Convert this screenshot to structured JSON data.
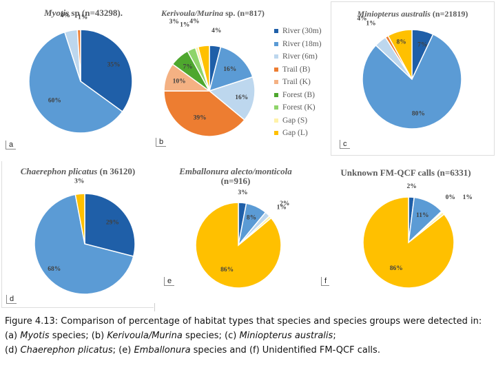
{
  "colors": {
    "river30": "#1f5fa8",
    "river18": "#5b9bd5",
    "river6": "#bdd7ee",
    "trailB": "#ed7d31",
    "trailK": "#f4b183",
    "forestB": "#4ea72e",
    "forestK": "#8fd46a",
    "gapS": "#fff2a8",
    "gapL": "#ffc000"
  },
  "legend": {
    "items": [
      {
        "label": "River (30m)",
        "color": "#1f5fa8"
      },
      {
        "label": "River (18m)",
        "color": "#5b9bd5"
      },
      {
        "label": "River (6m)",
        "color": "#bdd7ee"
      },
      {
        "label": "Trail (B)",
        "color": "#ed7d31"
      },
      {
        "label": "Trail (K)",
        "color": "#f4b183"
      },
      {
        "label": "Forest (B)",
        "color": "#4ea72e"
      },
      {
        "label": "Forest (K)",
        "color": "#8fd46a"
      },
      {
        "label": "Gap (S)",
        "color": "#fff2a8"
      },
      {
        "label": "Gap (L)",
        "color": "#ffc000"
      }
    ]
  },
  "chart_data": [
    {
      "type": "pie",
      "panel": "a",
      "title_species": "Myotis",
      "title_rest": " sp (n=43298).",
      "slices": [
        {
          "category": "River (30m)",
          "value": 35,
          "color": "#1f5fa8",
          "label": "35%"
        },
        {
          "category": "River (18m)",
          "value": 60,
          "color": "#5b9bd5",
          "label": "60%"
        },
        {
          "category": "River (6m)",
          "value": 4,
          "color": "#bdd7ee",
          "label": "4%"
        },
        {
          "category": "Trail (B)",
          "value": 1,
          "color": "#ed7d31",
          "label": "1%"
        }
      ]
    },
    {
      "type": "pie",
      "panel": "b",
      "title_species": "Kerivoula/Murina",
      "title_rest": " sp. (n=817)",
      "slices": [
        {
          "category": "River (30m)",
          "value": 4,
          "color": "#1f5fa8",
          "label": "4%"
        },
        {
          "category": "River (18m)",
          "value": 16,
          "color": "#5b9bd5",
          "label": "16%"
        },
        {
          "category": "River (6m)",
          "value": 16,
          "color": "#bdd7ee",
          "label": "16%"
        },
        {
          "category": "Trail (B)",
          "value": 39,
          "color": "#ed7d31",
          "label": "39%"
        },
        {
          "category": "Trail (K)",
          "value": 10,
          "color": "#f4b183",
          "label": "10%"
        },
        {
          "category": "Forest (B)",
          "value": 7,
          "color": "#4ea72e",
          "label": "7%"
        },
        {
          "category": "Forest (K)",
          "value": 3,
          "color": "#8fd46a",
          "label": "3%"
        },
        {
          "category": "Gap (S)",
          "value": 1,
          "color": "#fff2a8",
          "label": "1%"
        },
        {
          "category": "Gap (L)",
          "value": 4,
          "color": "#ffc000",
          "label": "4%"
        }
      ]
    },
    {
      "type": "pie",
      "panel": "c",
      "title_species": "Miniopterus australis",
      "title_rest": " (n=21819)",
      "slices": [
        {
          "category": "River (30m)",
          "value": 7,
          "color": "#1f5fa8",
          "label": "7%"
        },
        {
          "category": "River (18m)",
          "value": 80,
          "color": "#5b9bd5",
          "label": "80%"
        },
        {
          "category": "River (6m)",
          "value": 4,
          "color": "#bdd7ee",
          "label": "4%"
        },
        {
          "category": "Trail (B)",
          "value": 1,
          "color": "#ed7d31",
          "label": "1%"
        },
        {
          "category": "Gap (S)",
          "value": 0,
          "color": "#fff2a8",
          "label": ""
        },
        {
          "category": "Gap (L)",
          "value": 8,
          "color": "#ffc000",
          "label": "8%"
        }
      ]
    },
    {
      "type": "pie",
      "panel": "d",
      "title_species": "Chaerephon plicatus",
      "title_rest": " (n 36120)",
      "slices": [
        {
          "category": "River (30m)",
          "value": 29,
          "color": "#1f5fa8",
          "label": "29%"
        },
        {
          "category": "River (18m)",
          "value": 68,
          "color": "#5b9bd5",
          "label": "68%"
        },
        {
          "category": "Gap (L)",
          "value": 3,
          "color": "#ffc000",
          "label": "3%"
        }
      ]
    },
    {
      "type": "pie",
      "panel": "e",
      "title_species": "Emballonura alecto/monticola",
      "title_line2": "(n=916)",
      "slices": [
        {
          "category": "River (30m)",
          "value": 3,
          "color": "#1f5fa8",
          "label": "3%"
        },
        {
          "category": "River (18m)",
          "value": 8,
          "color": "#5b9bd5",
          "label": "8%"
        },
        {
          "category": "River (6m)",
          "value": 2,
          "color": "#bdd7ee",
          "label": "2%"
        },
        {
          "category": "Gap (S)",
          "value": 1,
          "color": "#fff2a8",
          "label": "1%"
        },
        {
          "category": "Gap (L)",
          "value": 86,
          "color": "#ffc000",
          "label": "86%"
        }
      ]
    },
    {
      "type": "pie",
      "panel": "f",
      "title_species": "",
      "title_rest": "Unknown FM-QCF calls (n=6331)",
      "slices": [
        {
          "category": "River (30m)",
          "value": 2,
          "color": "#1f5fa8",
          "label": "2%"
        },
        {
          "category": "River (18m)",
          "value": 11,
          "color": "#5b9bd5",
          "label": "11%"
        },
        {
          "category": "River (6m)",
          "value": 0.4,
          "color": "#bdd7ee",
          "label": "0%"
        },
        {
          "category": "Gap (S)",
          "value": 1,
          "color": "#fff2a8",
          "label": "1%"
        },
        {
          "category": "Gap (L)",
          "value": 86,
          "color": "#ffc000",
          "label": "86%"
        }
      ]
    }
  ],
  "caption": {
    "prefix": "Figure 4.13: Comparison of percentage of habitat types that species and species groups were detected in: (a) ",
    "a_species": "Myotis",
    "a_rest": " species; (b) ",
    "b_species": "Kerivoula/Murina",
    "b_rest": " species; (c) ",
    "c_species": "Miniopterus australis",
    "c_rest": ";",
    "d_prefix": "(d) ",
    "d_species": "Chaerephon plicatus",
    "d_rest": "; (e) ",
    "e_species": "Emballonura",
    "e_rest": " species and (f) Unidentified FM-QCF calls."
  }
}
